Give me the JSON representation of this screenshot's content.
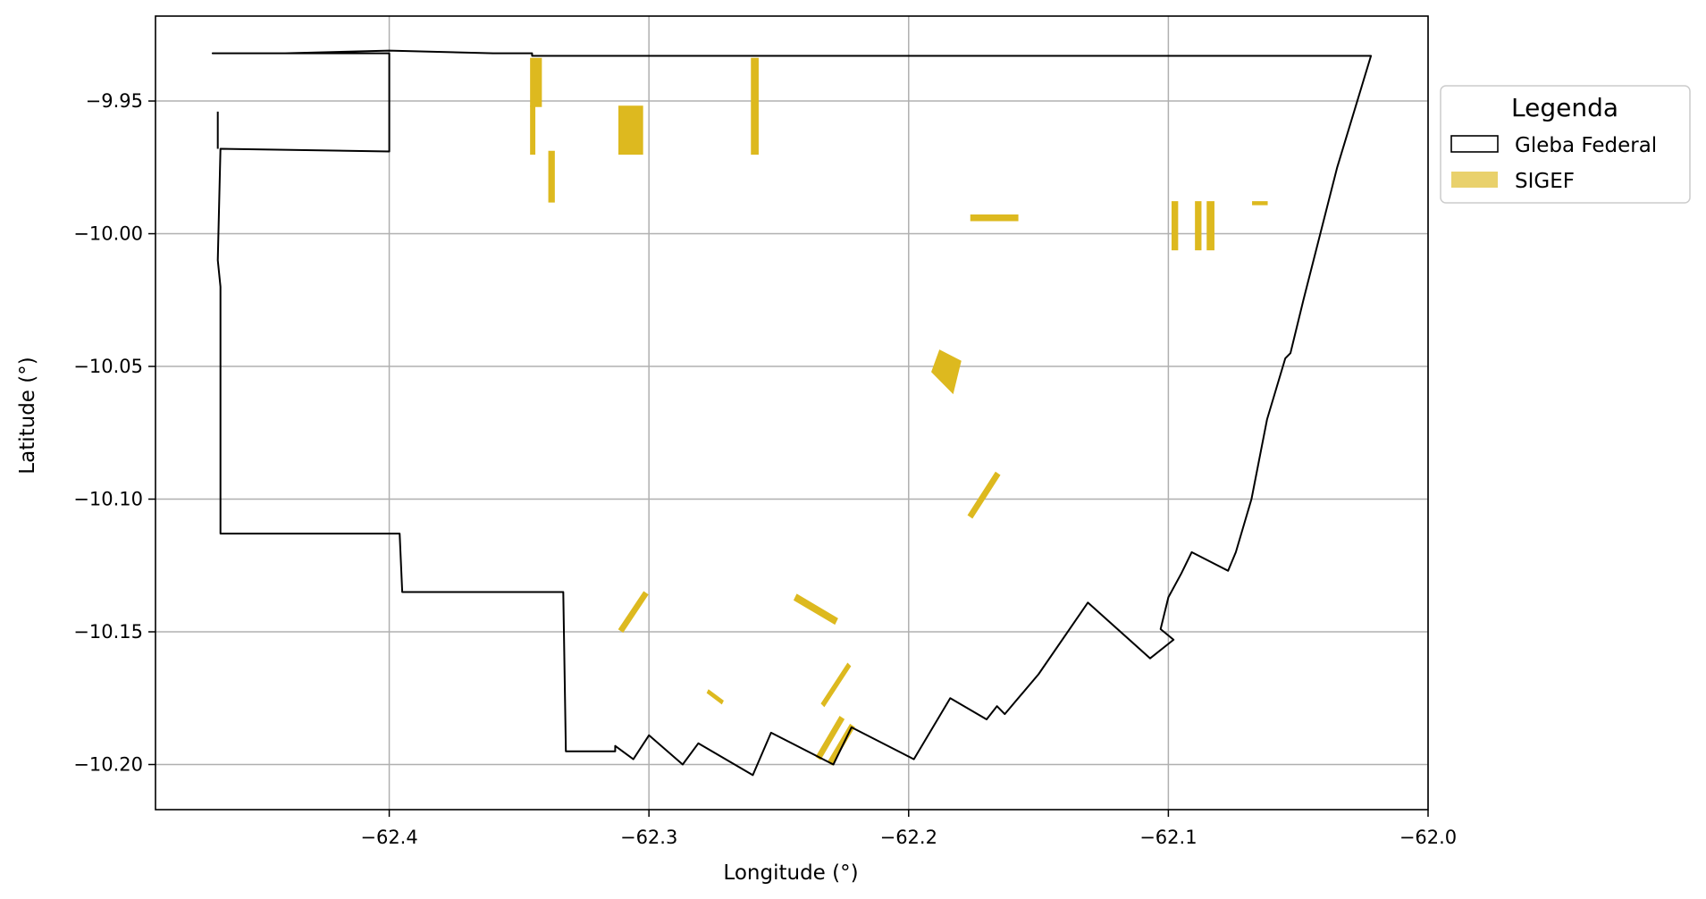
{
  "chart_data": {
    "type": "map",
    "xlabel": "Longitude (°)",
    "ylabel": "Latitude (°)",
    "xlim": [
      -62.49,
      -62.0
    ],
    "ylim": [
      -10.217,
      -9.918
    ],
    "grid": true,
    "x_ticks": [
      -62.4,
      -62.3,
      -62.2,
      -62.1,
      -62.0
    ],
    "x_tick_labels": [
      "−62.4",
      "−62.3",
      "−62.2",
      "−62.1",
      "−62.0"
    ],
    "y_ticks": [
      -9.95,
      -10.0,
      -10.05,
      -10.1,
      -10.15,
      -10.2
    ],
    "y_tick_labels": [
      "−9.95",
      "−10.00",
      "−10.05",
      "−10.10",
      "−10.15",
      "−10.20"
    ],
    "legend": {
      "title": "Legenda",
      "placement": "outside-upper-right",
      "entries": [
        {
          "label": "Gleba Federal",
          "style": "outline",
          "color": "#000000"
        },
        {
          "label": "SIGEF",
          "style": "fill",
          "color": "#e9d16c"
        }
      ]
    },
    "colors": {
      "boundary": "#000000",
      "sigef": "#ddb91f",
      "grid": "#b0b0b0"
    },
    "series": [
      {
        "name": "Gleba Federal",
        "kind": "polygon",
        "points": [
          [
            -62.468,
            -9.932
          ],
          [
            -62.44,
            -9.932
          ],
          [
            -62.4,
            -9.931
          ],
          [
            -62.36,
            -9.932
          ],
          [
            -62.345,
            -9.932
          ],
          [
            -62.345,
            -9.933
          ],
          [
            -62.3,
            -9.933
          ],
          [
            -62.2,
            -9.933
          ],
          [
            -62.1,
            -9.933
          ],
          [
            -62.022,
            -9.933
          ],
          [
            -62.035,
            -9.975
          ],
          [
            -62.048,
            -10.025
          ],
          [
            -62.053,
            -10.045
          ],
          [
            -62.055,
            -10.047
          ],
          [
            -62.062,
            -10.07
          ],
          [
            -62.068,
            -10.1
          ],
          [
            -62.074,
            -10.12
          ],
          [
            -62.077,
            -10.127
          ],
          [
            -62.091,
            -10.12
          ],
          [
            -62.095,
            -10.128
          ],
          [
            -62.1,
            -10.137
          ],
          [
            -62.103,
            -10.149
          ],
          [
            -62.098,
            -10.153
          ],
          [
            -62.107,
            -10.16
          ],
          [
            -62.131,
            -10.139
          ],
          [
            -62.15,
            -10.166
          ],
          [
            -62.163,
            -10.181
          ],
          [
            -62.166,
            -10.178
          ],
          [
            -62.17,
            -10.183
          ],
          [
            -62.184,
            -10.175
          ],
          [
            -62.198,
            -10.198
          ],
          [
            -62.202,
            -10.196
          ],
          [
            -62.222,
            -10.186
          ],
          [
            -62.229,
            -10.2
          ],
          [
            -62.253,
            -10.188
          ],
          [
            -62.26,
            -10.204
          ],
          [
            -62.281,
            -10.192
          ],
          [
            -62.287,
            -10.2
          ],
          [
            -62.3,
            -10.189
          ],
          [
            -62.306,
            -10.198
          ],
          [
            -62.313,
            -10.193
          ],
          [
            -62.313,
            -10.195
          ],
          [
            -62.332,
            -10.195
          ],
          [
            -62.333,
            -10.135
          ],
          [
            -62.395,
            -10.135
          ],
          [
            -62.396,
            -10.113
          ],
          [
            -62.465,
            -10.113
          ],
          [
            -62.465,
            -10.02
          ],
          [
            -62.466,
            -10.01
          ],
          [
            -62.465,
            -9.968
          ],
          [
            -62.4,
            -9.969
          ],
          [
            -62.4,
            -9.932
          ],
          [
            -62.467,
            -9.932
          ]
        ],
        "spur": [
          [
            -62.466,
            -9.954
          ],
          [
            -62.466,
            -9.968
          ]
        ]
      },
      {
        "name": "SIGEF",
        "kind": "parcels",
        "parcels": [
          [
            [
              -62.3455,
              -9.934
            ],
            [
              -62.3415,
              -9.934
            ],
            [
              -62.3415,
              -9.952
            ],
            [
              -62.3455,
              -9.952
            ]
          ],
          [
            [
              -62.3455,
              -9.952
            ],
            [
              -62.344,
              -9.952
            ],
            [
              -62.344,
              -9.97
            ],
            [
              -62.3455,
              -9.97
            ]
          ],
          [
            [
              -62.3385,
              -9.969
            ],
            [
              -62.3365,
              -9.969
            ],
            [
              -62.3365,
              -9.988
            ],
            [
              -62.3385,
              -9.988
            ]
          ],
          [
            [
              -62.3115,
              -9.952
            ],
            [
              -62.3025,
              -9.952
            ],
            [
              -62.3025,
              -9.97
            ],
            [
              -62.3115,
              -9.97
            ]
          ],
          [
            [
              -62.2605,
              -9.934
            ],
            [
              -62.258,
              -9.934
            ],
            [
              -62.258,
              -9.97
            ],
            [
              -62.2605,
              -9.97
            ]
          ],
          [
            [
              -62.176,
              -9.993
            ],
            [
              -62.158,
              -9.993
            ],
            [
              -62.158,
              -9.995
            ],
            [
              -62.176,
              -9.995
            ]
          ],
          [
            [
              -62.0985,
              -9.988
            ],
            [
              -62.0965,
              -9.988
            ],
            [
              -62.0965,
              -10.006
            ],
            [
              -62.0985,
              -10.006
            ]
          ],
          [
            [
              -62.0895,
              -9.988
            ],
            [
              -62.0875,
              -9.988
            ],
            [
              -62.0875,
              -10.006
            ],
            [
              -62.0895,
              -10.006
            ]
          ],
          [
            [
              -62.085,
              -9.988
            ],
            [
              -62.0825,
              -9.988
            ],
            [
              -62.0825,
              -10.006
            ],
            [
              -62.085,
              -10.006
            ]
          ],
          [
            [
              -62.0675,
              -9.988
            ],
            [
              -62.062,
              -9.988
            ],
            [
              -62.062,
              -9.989
            ],
            [
              -62.0675,
              -9.989
            ]
          ],
          [
            [
              -62.188,
              -10.044
            ],
            [
              -62.18,
              -10.048
            ],
            [
              -62.183,
              -10.06
            ],
            [
              -62.191,
              -10.052
            ]
          ],
          [
            [
              -62.1665,
              -10.09
            ],
            [
              -62.165,
              -10.091
            ],
            [
              -62.1755,
              -10.107
            ],
            [
              -62.177,
              -10.106
            ]
          ],
          [
            [
              -62.302,
              -10.135
            ],
            [
              -62.3005,
              -10.136
            ],
            [
              -62.31,
              -10.15
            ],
            [
              -62.3115,
              -10.149
            ]
          ],
          [
            [
              -62.243,
              -10.136
            ],
            [
              -62.2275,
              -10.145
            ],
            [
              -62.2285,
              -10.147
            ],
            [
              -62.244,
              -10.138
            ]
          ],
          [
            [
              -62.2235,
              -10.162
            ],
            [
              -62.2225,
              -10.163
            ],
            [
              -62.2325,
              -10.178
            ],
            [
              -62.2335,
              -10.177
            ]
          ],
          [
            [
              -62.277,
              -10.172
            ],
            [
              -62.2715,
              -10.176
            ],
            [
              -62.272,
              -10.177
            ],
            [
              -62.2775,
              -10.173
            ]
          ],
          [
            [
              -62.2265,
              -10.182
            ],
            [
              -62.225,
              -10.183
            ],
            [
              -62.234,
              -10.198
            ],
            [
              -62.2355,
              -10.197
            ]
          ],
          [
            [
              -62.2225,
              -10.185
            ],
            [
              -62.221,
              -10.186
            ],
            [
              -62.2295,
              -10.2
            ],
            [
              -62.231,
              -10.199
            ]
          ]
        ]
      }
    ]
  }
}
